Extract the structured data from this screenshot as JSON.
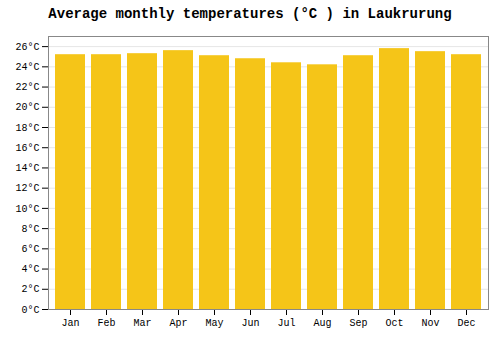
{
  "chart_data": {
    "type": "bar",
    "title": "Average monthly temperatures (°C ) in Laukrurung",
    "categories": [
      "Jan",
      "Feb",
      "Mar",
      "Apr",
      "May",
      "Jun",
      "Jul",
      "Aug",
      "Sep",
      "Oct",
      "Nov",
      "Dec"
    ],
    "values": [
      25.2,
      25.2,
      25.3,
      25.6,
      25.1,
      24.8,
      24.4,
      24.2,
      25.1,
      25.8,
      25.5,
      25.2
    ],
    "color": "#F5C518",
    "ylim": [
      0,
      27
    ],
    "yticks": [
      {
        "value": 0,
        "label": "0°C"
      },
      {
        "value": 2,
        "label": "2°C"
      },
      {
        "value": 4,
        "label": "4°C"
      },
      {
        "value": 6,
        "label": "6°C"
      },
      {
        "value": 8,
        "label": "8°C"
      },
      {
        "value": 10,
        "label": "10°C"
      },
      {
        "value": 12,
        "label": "12°C"
      },
      {
        "value": 14,
        "label": "14°C"
      },
      {
        "value": 16,
        "label": "16°C"
      },
      {
        "value": 18,
        "label": "18°C"
      },
      {
        "value": 20,
        "label": "20°C"
      },
      {
        "value": 22,
        "label": "22°C"
      },
      {
        "value": 24,
        "label": "24°C"
      },
      {
        "value": 26,
        "label": "26°C"
      }
    ],
    "grid": true
  }
}
